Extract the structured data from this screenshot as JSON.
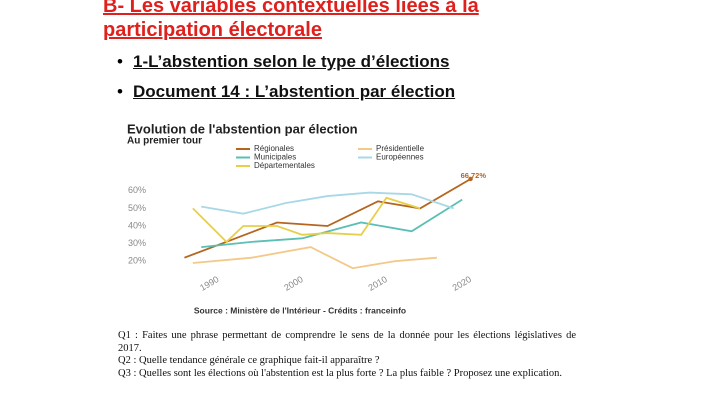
{
  "header": {
    "title": "B- Les variables contextuelles liées à la participation électorale"
  },
  "bullets": [
    "1-L’abstention selon le type d’élections",
    "Document 14 : L’abstention par élection"
  ],
  "chart_data": {
    "type": "line",
    "title": "Evolution de l'abstention par élection",
    "subtitle": "Au premier tour",
    "source": "Source : Ministère de l'Intérieur - Crédits : franceinfo",
    "annotation": "66,72%",
    "xlim": [
      1986,
      2022
    ],
    "xticks": [
      1990,
      2000,
      2010,
      2020
    ],
    "ylim": [
      15,
      65
    ],
    "yticks": [
      {
        "value": 20,
        "label": "20%"
      },
      {
        "value": 30,
        "label": "30%"
      },
      {
        "value": 40,
        "label": "40%"
      },
      {
        "value": 50,
        "label": "50%"
      },
      {
        "value": 60,
        "label": "60%"
      }
    ],
    "grid": false,
    "series": [
      {
        "name": "Régionales",
        "color": "#b5651d",
        "x": [
          1987,
          1992,
          1998,
          2004,
          2010,
          2015,
          2021
        ],
        "values": [
          22,
          31,
          42,
          40,
          54,
          50,
          66.72
        ]
      },
      {
        "name": "Municipales",
        "color": "#5bbfb5",
        "x": [
          1989,
          1995,
          2001,
          2008,
          2014,
          2020
        ],
        "values": [
          28,
          31,
          33,
          42,
          37,
          55
        ]
      },
      {
        "name": "Départementales",
        "color": "#e8cf4a",
        "x": [
          1988,
          1992,
          1994,
          1998,
          2001,
          2004,
          2008,
          2011,
          2015
        ],
        "values": [
          50,
          31,
          40,
          40,
          35,
          36,
          35,
          56,
          50
        ]
      },
      {
        "name": "Présidentielle",
        "color": "#f3c98a",
        "x": [
          1988,
          1995,
          2002,
          2007,
          2012,
          2017
        ],
        "values": [
          19,
          22,
          28,
          16,
          20,
          22
        ]
      },
      {
        "name": "Européennes",
        "color": "#a8d8e6",
        "x": [
          1989,
          1994,
          1999,
          2004,
          2009,
          2014,
          2019
        ],
        "values": [
          51,
          47,
          53,
          57,
          59,
          58,
          50
        ]
      }
    ]
  },
  "questions": [
    "Q1 : Faites une phrase permettant de comprendre le sens de la donnée pour les élections législatives de 2017.",
    "Q2 : Quelle tendance générale ce graphique fait-il apparaître ?",
    "Q3 : Quelles sont les élections où l'abstention est la plus forte ? La plus faible ? Proposez une explication."
  ]
}
